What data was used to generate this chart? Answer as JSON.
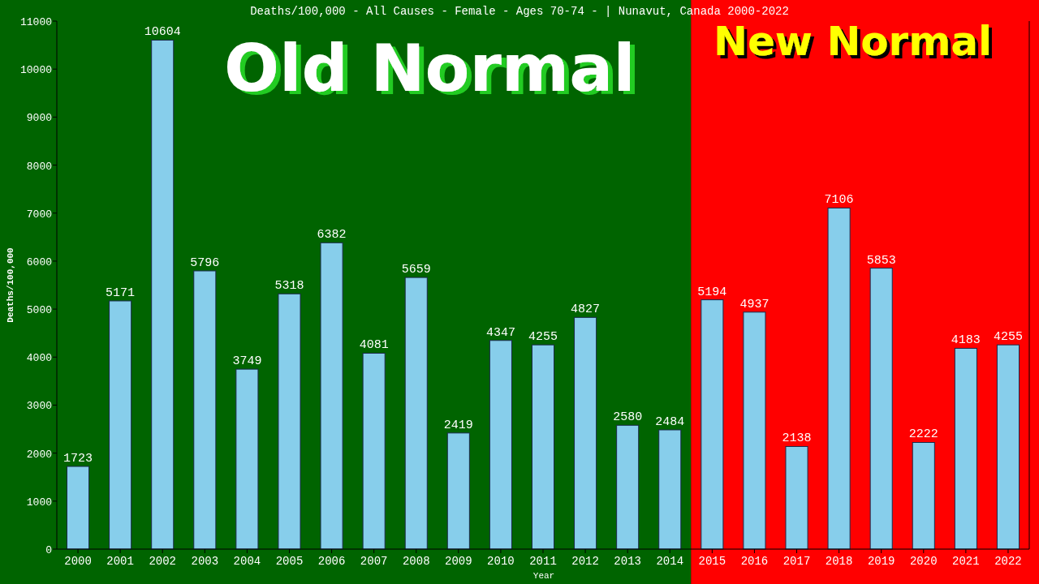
{
  "chart_data": {
    "type": "bar",
    "title": "Deaths/100,000 - All Causes - Female - Ages 70-74 -  | Nunavut, Canada 2000-2022",
    "xlabel": "Year",
    "ylabel": "Deaths/100,000",
    "categories": [
      "2000",
      "2001",
      "2002",
      "2003",
      "2004",
      "2005",
      "2006",
      "2007",
      "2008",
      "2009",
      "2010",
      "2011",
      "2012",
      "2013",
      "2014",
      "2015",
      "2016",
      "2017",
      "2018",
      "2019",
      "2020",
      "2021",
      "2022"
    ],
    "values": [
      1723,
      5171,
      10604,
      5796,
      3749,
      5318,
      6382,
      4081,
      5659,
      2419,
      4347,
      4255,
      4827,
      2580,
      2484,
      5194,
      4937,
      2138,
      7106,
      5853,
      2222,
      4183,
      4255
    ],
    "color": "#87ceeb",
    "ylim": [
      0,
      11000
    ],
    "yticks": [
      0,
      1000,
      2000,
      3000,
      4000,
      5000,
      6000,
      7000,
      8000,
      9000,
      10000,
      11000
    ],
    "data_labels": true,
    "bands": [
      {
        "axis": "x",
        "from": "2000",
        "to": "2014",
        "label": "Old Normal",
        "color": "#006400"
      },
      {
        "axis": "x",
        "from": "2015",
        "to": "2022",
        "label": "New Normal",
        "color": "#ff0000"
      }
    ]
  }
}
